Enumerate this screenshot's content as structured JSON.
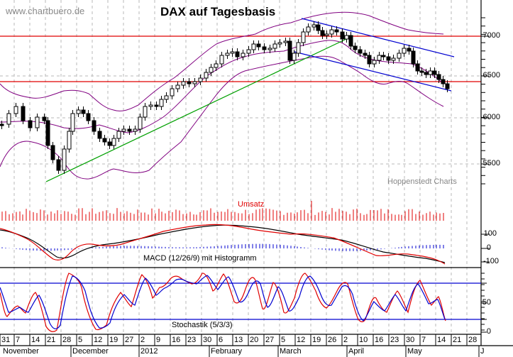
{
  "header": {
    "site": "www.chartbuero.de",
    "title": "DAX auf Tagesbasis",
    "source": "Hoppenstedt Charts"
  },
  "panels": {
    "volume_label": "Umsatz",
    "macd_label": "MACD (12/26/9) mit Histogramm",
    "stoch_label": "Stochastik (5/3/3)"
  },
  "axes": {
    "price_ticks": [
      "7000",
      "6500",
      "6000",
      "5500"
    ],
    "macd_ticks": [
      "100",
      "0",
      "-100"
    ],
    "stoch_ticks": [
      "50",
      "0"
    ],
    "day_ticks": [
      "31",
      "7",
      "14",
      "21",
      "28",
      "5",
      "12",
      "19",
      "27",
      "2",
      "9",
      "16",
      "23",
      "30",
      "6",
      "13",
      "20",
      "27",
      "5",
      "12",
      "19",
      "26",
      "2",
      "10",
      "16",
      "23",
      "30",
      "7",
      "14",
      "21",
      "28"
    ],
    "month_ticks": [
      "November",
      "December",
      "2012",
      "February",
      "March",
      "April",
      "May",
      "J"
    ]
  },
  "colors": {
    "price_lines": "#e00000",
    "bollinger": "#800080",
    "trend_up": "#00a000",
    "channel": "#0000d0",
    "volume": "#e00000",
    "macd": "#000000",
    "signal": "#e00000",
    "histogram": "#0000d0",
    "stoch_k": "#e00000",
    "stoch_d": "#0000d0",
    "grid": "#b0b0b0"
  },
  "chart_data": [
    {
      "type": "candlestick",
      "title": "DAX auf Tagesbasis",
      "xlabel": "",
      "ylabel": "",
      "ylim": [
        5300,
        7250
      ],
      "x_range": [
        "2011-10-31",
        "2012-05-18"
      ],
      "horizontal_lines": [
        7000,
        6430
      ],
      "indicators": [
        "Bollinger Bands",
        "Uptrend line",
        "Downtrend channel"
      ],
      "approx_close": [
        {
          "date": "2011-10-31",
          "close": 6140
        },
        {
          "date": "2011-11-07",
          "close": 6050
        },
        {
          "date": "2011-11-14",
          "close": 5950
        },
        {
          "date": "2011-11-21",
          "close": 5500
        },
        {
          "date": "2011-11-28",
          "close": 6100
        },
        {
          "date": "2011-12-05",
          "close": 6000
        },
        {
          "date": "2011-12-12",
          "close": 5800
        },
        {
          "date": "2011-12-19",
          "close": 5850
        },
        {
          "date": "2011-12-27",
          "close": 5900
        },
        {
          "date": "2012-01-02",
          "close": 6150
        },
        {
          "date": "2012-01-09",
          "close": 6180
        },
        {
          "date": "2012-01-16",
          "close": 6400
        },
        {
          "date": "2012-01-23",
          "close": 6500
        },
        {
          "date": "2012-01-30",
          "close": 6750
        },
        {
          "date": "2012-02-06",
          "close": 6800
        },
        {
          "date": "2012-02-13",
          "close": 6850
        },
        {
          "date": "2012-02-20",
          "close": 6900
        },
        {
          "date": "2012-02-27",
          "close": 6950
        },
        {
          "date": "2012-03-05",
          "close": 6750
        },
        {
          "date": "2012-03-12",
          "close": 7100
        },
        {
          "date": "2012-03-19",
          "close": 7000
        },
        {
          "date": "2012-03-26",
          "close": 7000
        },
        {
          "date": "2012-04-02",
          "close": 6700
        },
        {
          "date": "2012-04-10",
          "close": 6650
        },
        {
          "date": "2012-04-16",
          "close": 6700
        },
        {
          "date": "2012-04-23",
          "close": 6700
        },
        {
          "date": "2012-04-30",
          "close": 6800
        },
        {
          "date": "2012-05-07",
          "close": 6500
        },
        {
          "date": "2012-05-14",
          "close": 6300
        },
        {
          "date": "2012-05-18",
          "close": 6280
        }
      ]
    },
    {
      "type": "bar",
      "title": "Umsatz",
      "series": [
        {
          "name": "Volume"
        }
      ]
    },
    {
      "type": "line",
      "title": "MACD (12/26/9) mit Histogramm",
      "ylim": [
        -120,
        180
      ],
      "ticks": [
        100,
        0,
        -100
      ],
      "series": [
        {
          "name": "MACD",
          "approx_values": [
            0,
            -40,
            -90,
            -20,
            40,
            20,
            30,
            70,
            110,
            150,
            170,
            160,
            140,
            110,
            60,
            40,
            40,
            20,
            -40,
            -60,
            -100
          ]
        },
        {
          "name": "Signal",
          "approx_values": [
            0,
            -20,
            -50,
            -40,
            10,
            25,
            25,
            55,
            95,
            140,
            165,
            165,
            150,
            120,
            80,
            60,
            45,
            30,
            -10,
            -40,
            -80
          ]
        }
      ]
    },
    {
      "type": "line",
      "title": "Stochastik (5/3/3)",
      "ylim": [
        0,
        100
      ],
      "ticks": [
        50,
        0
      ],
      "reference_lines": [
        80,
        20
      ],
      "series": [
        {
          "name": "%K",
          "color": "#e00000"
        },
        {
          "name": "%D",
          "color": "#0000d0"
        }
      ]
    }
  ]
}
